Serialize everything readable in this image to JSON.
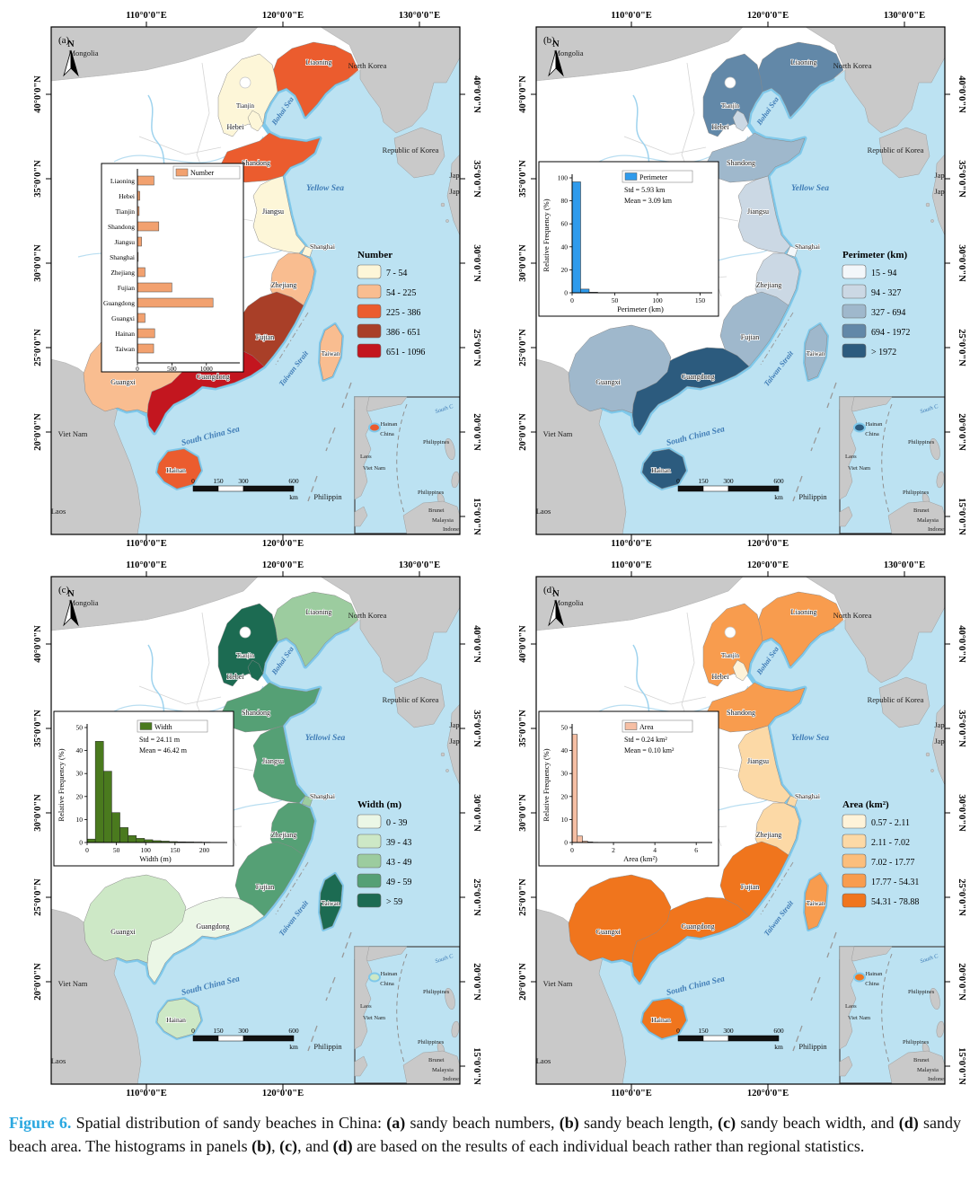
{
  "figure": {
    "caption_segments": [
      {
        "text": "Figure 6.",
        "bold": true,
        "color": "#2BA8E0"
      },
      {
        "text": " Spatial distribution of sandy beaches in China: ",
        "bold": false
      },
      {
        "text": "(a)",
        "bold": true
      },
      {
        "text": " sandy beach numbers, ",
        "bold": false
      },
      {
        "text": "(b)",
        "bold": true
      },
      {
        "text": " sandy beach length, ",
        "bold": false
      },
      {
        "text": "(c)",
        "bold": true
      },
      {
        "text": " sandy beach width, and ",
        "bold": false
      },
      {
        "text": "(d)",
        "bold": true
      },
      {
        "text": " sandy beach area. The histograms in panels ",
        "bold": false
      },
      {
        "text": "(b)",
        "bold": true
      },
      {
        "text": ", ",
        "bold": false
      },
      {
        "text": "(c)",
        "bold": true
      },
      {
        "text": ", and ",
        "bold": false
      },
      {
        "text": "(d)",
        "bold": true
      },
      {
        "text": " are based on the results of each individual beach rather than regional statistics.",
        "bold": false
      }
    ]
  },
  "map_common": {
    "top_ticks": [
      "110°0'0\"E",
      "120°0'0\"E",
      "130°0'0\"E"
    ],
    "bottom_ticks": [
      "110°0'0\"E",
      "120°0'0\"E"
    ],
    "left_ticks": [
      "40°0'0\"N",
      "35°0'0\"N",
      "30°0'0\"N",
      "25°0'0\"N",
      "20°0'0\"N"
    ],
    "right_ticks": [
      "40°0'0\"N",
      "35°0'0\"N",
      "30°0'0\"N",
      "25°0'0\"N",
      "20°0'0\"N",
      "15°0'0\"N"
    ],
    "north_label": "N",
    "scalebar": {
      "t0": "0",
      "t1": "150",
      "t2": "300",
      "t3": "600",
      "unit": "km"
    },
    "countries": {
      "mongolia": "Mongolia",
      "north_korea": "North Korea",
      "republic_of_korea": "Republic of Korea",
      "japan_1": "Japan",
      "japan_2": "Japan",
      "viet_nam": "Viet Nam",
      "laos": "Laos",
      "philippines_edge": "Philippin"
    },
    "seas": {
      "bohai": "Bohai Sea",
      "taiwan_strait": "Taiwan Strait",
      "south_china_sea": "South China Sea"
    },
    "province_labels": {
      "liaoning": "Liaoning",
      "tianjin": "Tianjin",
      "hebei": "Hebei",
      "shandong": "Shandong",
      "jiangsu": "Jiangsu",
      "shanghai": "Shanghai",
      "zhejiang": "Zhejiang",
      "fujian": "Fujian",
      "guangdong": "Guangdong",
      "guangxi": "Guangxi",
      "hainan": "Hainan",
      "taiwan": "Taiwan"
    },
    "inset_map": {
      "hainan": "Hainan",
      "china": "China",
      "south_c": "South C",
      "laos": "Laos",
      "viet_nam": "Viet Nam",
      "philippines_1": "Philippines",
      "philippines_2": "Philippines",
      "brunei": "Brunei",
      "malaysia": "Malaysia",
      "indonesia": "Indonesia"
    }
  },
  "panels": [
    {
      "label": "(a)",
      "yellow_sea": "Yellow Sea",
      "legend": {
        "title": "Number",
        "classes": [
          {
            "label": "7 - 54",
            "color": "#FDF6D8"
          },
          {
            "label": "54 - 225",
            "color": "#F9BD90"
          },
          {
            "label": "225 - 386",
            "color": "#EB5C2E"
          },
          {
            "label": "386 - 651",
            "color": "#A93F28"
          },
          {
            "label": "651 - 1096",
            "color": "#C3161F"
          }
        ]
      },
      "fills": {
        "liaoning": "#EB5C2E",
        "hebei": "#FDF6D8",
        "tianjin": "#FDF6D8",
        "shandong": "#EB5C2E",
        "jiangsu": "#FDF6D8",
        "shanghai": "#FDF6D8",
        "zhejiang": "#F9BD90",
        "fujian": "#A93F28",
        "guangdong": "#C3161F",
        "guangxi": "#F9BD90",
        "hainan": "#EB5C2E",
        "taiwan": "#F9BD90"
      },
      "inset": {
        "type": "barh",
        "legend_label": "Number",
        "bar_color": "#F2A16F",
        "categories": [
          "Liaoning",
          "Hebei",
          "Tianjin",
          "Shandong",
          "Jiangsu",
          "Shanghai",
          "Zhejiang",
          "Fujian",
          "Guangdong",
          "Guangxi",
          "Hainan",
          "Taiwan"
        ],
        "values": [
          240,
          35,
          25,
          310,
          60,
          12,
          110,
          500,
          1096,
          110,
          250,
          235
        ],
        "x_ticks": [
          0,
          500,
          1000
        ],
        "vmax": 1250
      }
    },
    {
      "label": "(b)",
      "yellow_sea": "Yellow Sea",
      "legend": {
        "title": "Perimeter (km)",
        "classes": [
          {
            "label": "15 - 94",
            "color": "#F3F7FA"
          },
          {
            "label": "94 - 327",
            "color": "#CBD8E4"
          },
          {
            "label": "327 - 694",
            "color": "#9FB8CC"
          },
          {
            "label": "694 - 1972",
            "color": "#6288A8"
          },
          {
            "label": "> 1972",
            "color": "#2C5B7E"
          }
        ]
      },
      "fills": {
        "liaoning": "#6288A8",
        "hebei": "#6288A8",
        "tianjin": "#CBD8E4",
        "shandong": "#9FB8CC",
        "jiangsu": "#CBD8E4",
        "shanghai": "#F3F7FA",
        "zhejiang": "#CBD8E4",
        "fujian": "#9FB8CC",
        "guangdong": "#2C5B7E",
        "guangxi": "#9FB8CC",
        "hainan": "#2C5B7E",
        "taiwan": "#9FB8CC"
      },
      "inset": {
        "type": "hist",
        "legend_label": "Perimeter",
        "std": "Std = 5.93 km",
        "mean": "Mean = 3.09 km",
        "bar_color": "#2F9BEC",
        "xlabel": "Perimeter (km)",
        "ylabel": "Relative Frequency (%)",
        "bin_width": 10,
        "xmax": 160,
        "x_ticks": [
          0,
          50,
          100,
          150
        ],
        "y_ticks": [
          0,
          20,
          40,
          60,
          80,
          100
        ],
        "ymax": 100,
        "values": [
          96.5,
          3.2,
          0.5,
          0.2,
          0.1
        ]
      }
    },
    {
      "label": "(c)",
      "yellow_sea": "Yellowi Sea",
      "legend": {
        "title": "Width (m)",
        "classes": [
          {
            "label": "0 - 39",
            "color": "#EBF7E6"
          },
          {
            "label": "39 - 43",
            "color": "#CDE8C6"
          },
          {
            "label": "43 - 49",
            "color": "#9CCC9F"
          },
          {
            "label": "49 - 59",
            "color": "#55A075"
          },
          {
            "label": "> 59",
            "color": "#1C6B52"
          }
        ]
      },
      "fills": {
        "liaoning": "#9CCC9F",
        "hebei": "#1C6B52",
        "tianjin": "#1C6B52",
        "shandong": "#55A075",
        "jiangsu": "#55A075",
        "shanghai": "#9CCC9F",
        "zhejiang": "#55A075",
        "fujian": "#55A075",
        "guangdong": "#EBF7E6",
        "guangxi": "#CDE8C6",
        "hainan": "#CDE8C6",
        "taiwan": "#1C6B52"
      },
      "inset": {
        "type": "hist",
        "legend_label": "Width",
        "std": "Std = 24.11 m",
        "mean": "Mean = 46.42 m",
        "bar_color": "#4A7A1E",
        "xlabel": "Width (m)",
        "ylabel": "Relative Frequency (%)",
        "bin_width": 14,
        "xmax": 233,
        "x_ticks": [
          0,
          50,
          100,
          150,
          200
        ],
        "y_ticks": [
          0,
          10,
          20,
          30,
          40,
          50
        ],
        "ymax": 50,
        "values": [
          1.5,
          44,
          31,
          13,
          6.5,
          3,
          1.8,
          1.2,
          0.8,
          0.6,
          0.4,
          0.3,
          0.25,
          0.2,
          0.15,
          0.1
        ]
      }
    },
    {
      "label": "(d)",
      "yellow_sea": "Yellow Sea",
      "legend": {
        "title": "Area (km²)",
        "classes": [
          {
            "label": "0.57 - 2.11",
            "color": "#FEF3D9"
          },
          {
            "label": "2.11 - 7.02",
            "color": "#FCD9A6"
          },
          {
            "label": "7.02 - 17.77",
            "color": "#FBBE7C"
          },
          {
            "label": "17.77 - 54.31",
            "color": "#F89C4E"
          },
          {
            "label": "54.31 - 78.88",
            "color": "#F0751D"
          }
        ]
      },
      "fills": {
        "liaoning": "#F89C4E",
        "hebei": "#F89C4E",
        "tianjin": "#FEF3D9",
        "shandong": "#F89C4E",
        "jiangsu": "#FCD9A6",
        "shanghai": "#FCD9A6",
        "zhejiang": "#FCD9A6",
        "fujian": "#F0751D",
        "guangdong": "#F0751D",
        "guangxi": "#F0751D",
        "hainan": "#F0751D",
        "taiwan": "#F89C4E"
      },
      "inset": {
        "type": "hist",
        "legend_label": "Area",
        "std": "Std = 0.24 km²",
        "mean": "Mean = 0.10 km²",
        "bar_color": "#F6BFA4",
        "xlabel": "Area (km²)",
        "ylabel": "Relative Frequency (%)",
        "bin_width": 0.25,
        "xmax": 6.6,
        "x_ticks": [
          0,
          2,
          4,
          6
        ],
        "y_ticks": [
          0,
          10,
          20,
          30,
          40,
          50
        ],
        "ymax": 50,
        "values": [
          47,
          2.8,
          0.6,
          0.25,
          0.12,
          0.08,
          0.05
        ]
      }
    }
  ]
}
